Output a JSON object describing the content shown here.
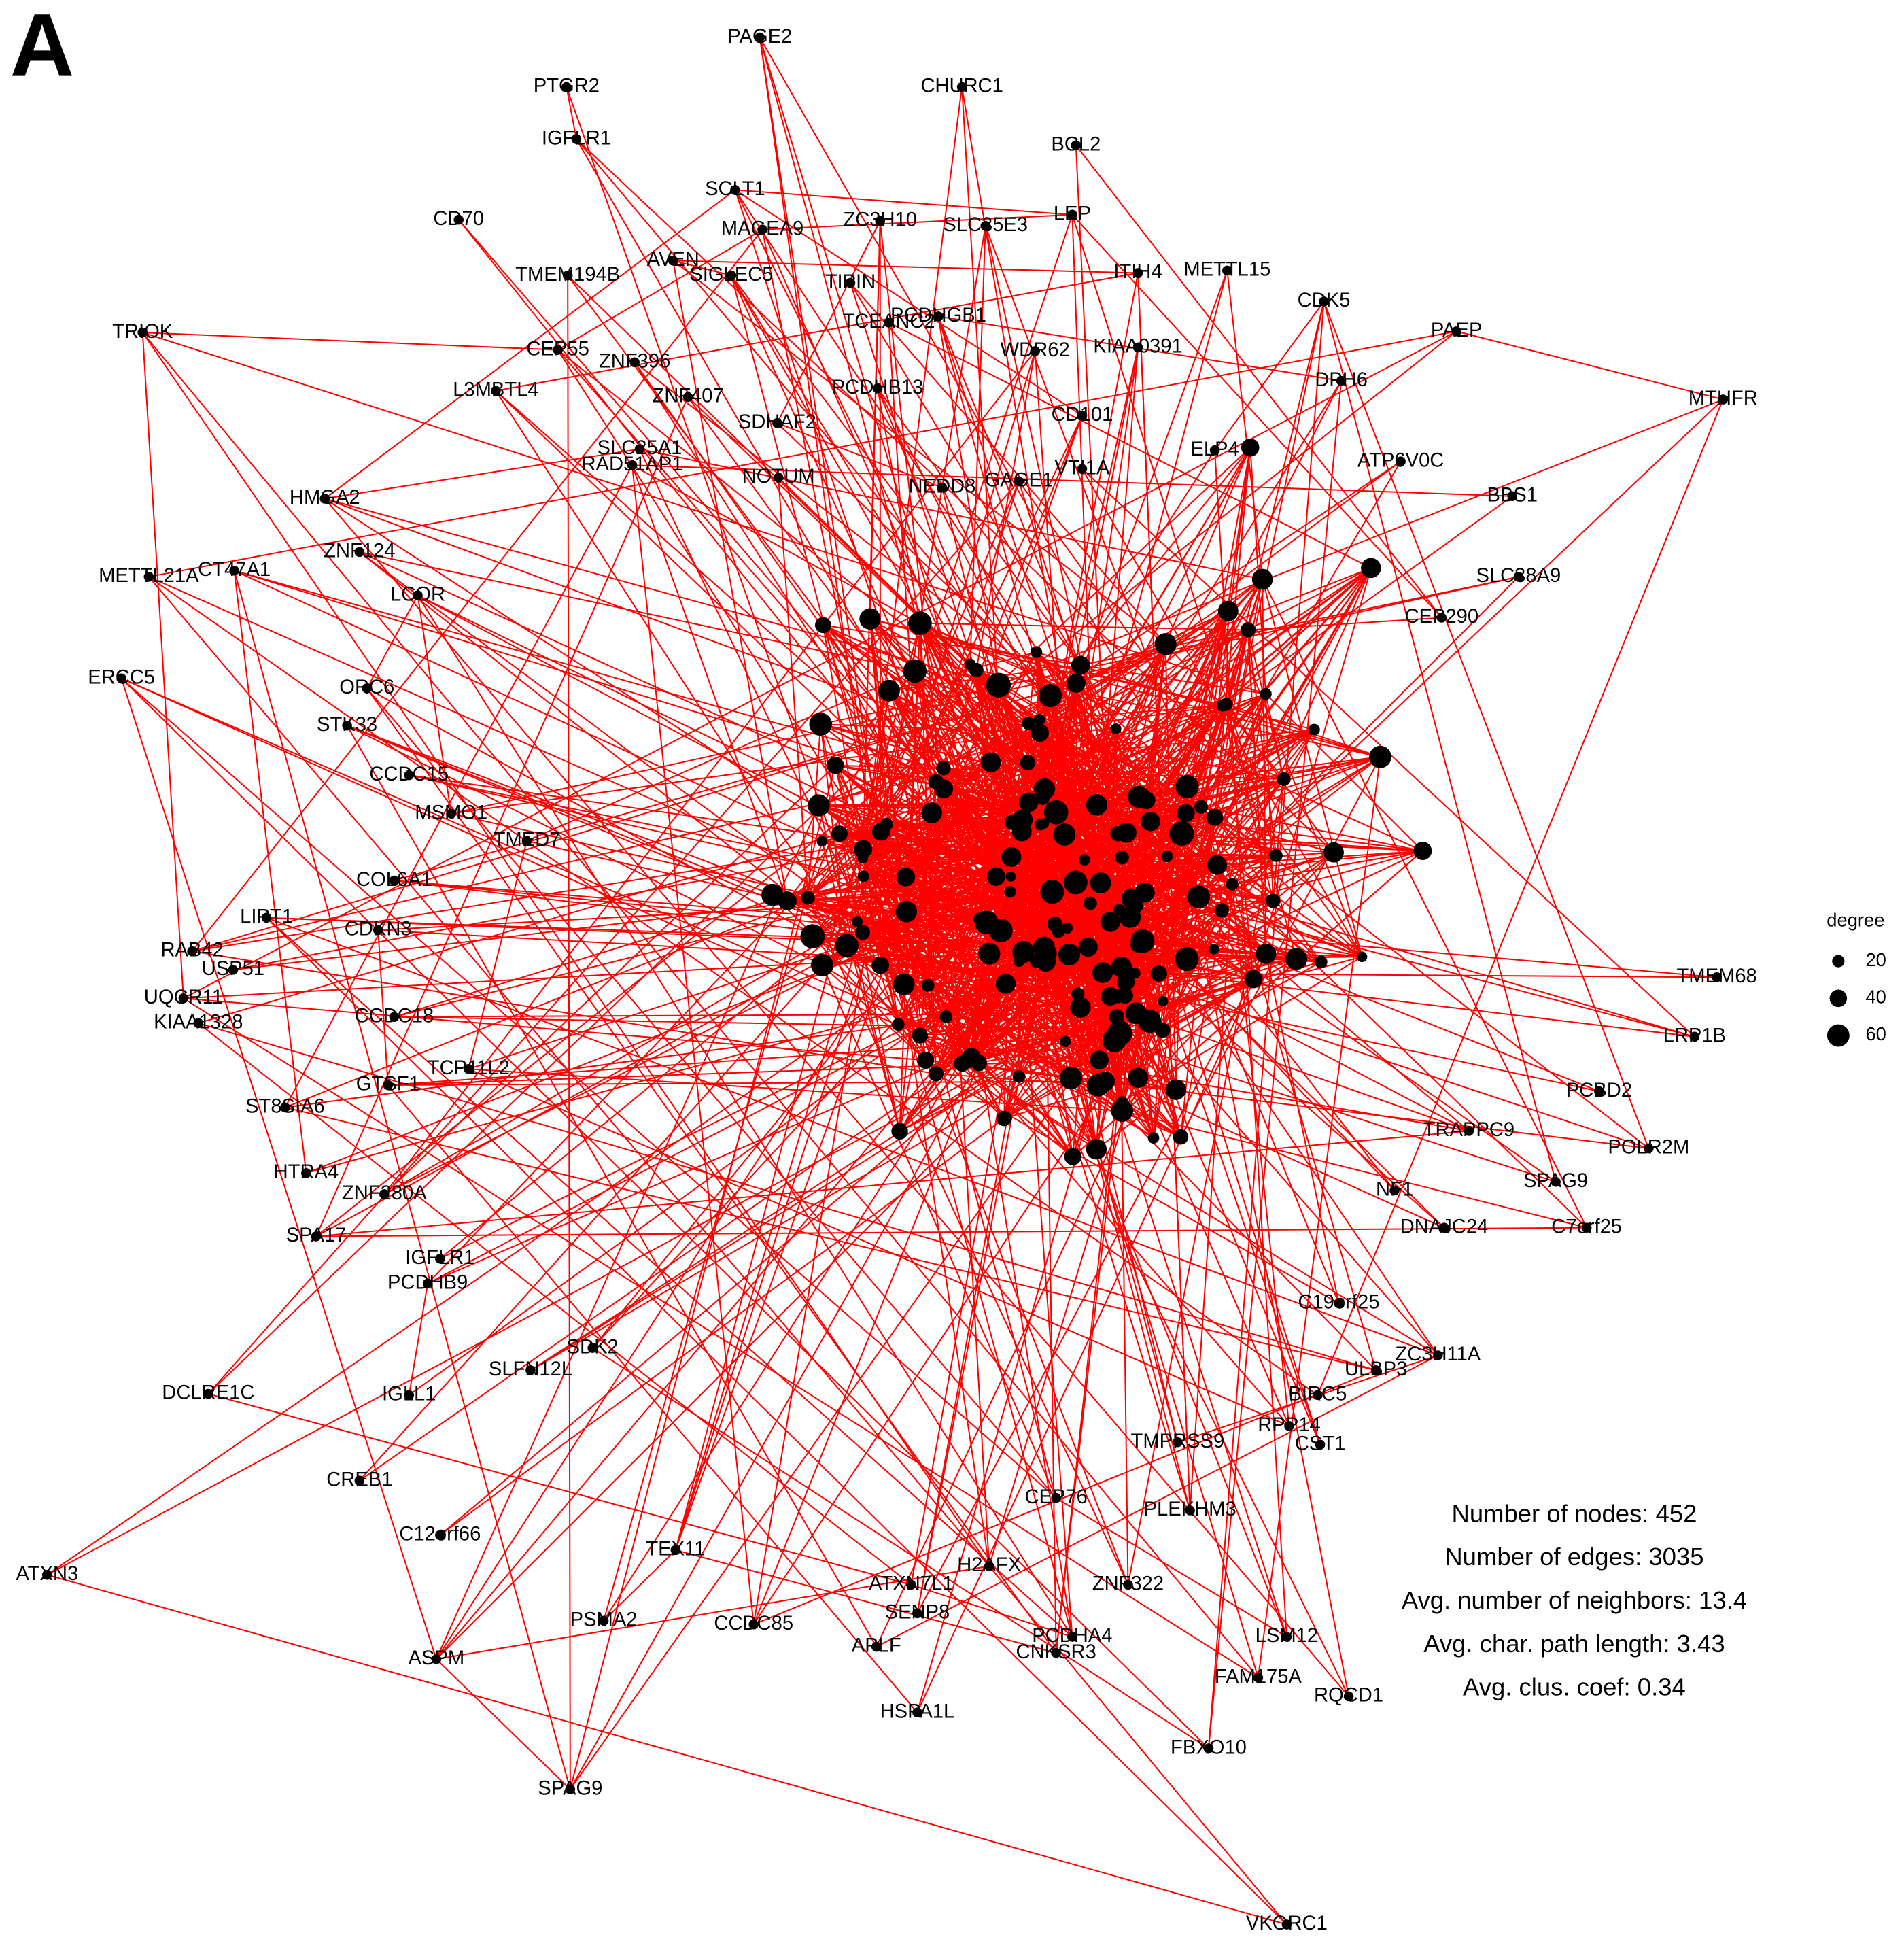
{
  "panel": "A",
  "nodes": [
    "PAGE2",
    "PTGR2",
    "CHURC1",
    "IGFLR1",
    "BCL2",
    "SCLT1",
    "CD70",
    "ZC3H10",
    "SLC35E3",
    "LEP",
    "MAGEA9",
    "AVEN",
    "SIGLEC5",
    "TMEM194B",
    "TIPIN",
    "ITIH4",
    "METTL15",
    "CDK5",
    "TRIOK",
    "PAEP",
    "PCDHGB1",
    "TCEANC2",
    "CEP55",
    "ZNF396",
    "WDR62",
    "KIAA0391",
    "L3MBTL4",
    "ZNF407",
    "PCDHB13",
    "DPH6",
    "MTHFR",
    "SDHAF2",
    "CD101",
    "SLC25A1",
    "RAD51AP1",
    "NOTUM",
    "NEDD8",
    "GAGE1",
    "VTI1A",
    "ELP4",
    "ATP6V0C",
    "HMGA2",
    "BBS1",
    "ZNF124",
    "METTL21A",
    "CT47A1",
    "LCOR",
    "SLC38A9",
    "CEP290",
    "ERCC5",
    "ORC6",
    "STK33",
    "CCDC15",
    "MSMO1",
    "TMED7",
    "LIPT1",
    "COL6A1",
    "CDKN3",
    "RAB42",
    "USP51",
    "UQCR11",
    "TMEM68",
    "LRP1B",
    "KIAA1328",
    "CCDC18",
    "PCBD2",
    "ST8SIA6",
    "GTSF1",
    "TCP11L2",
    "POLR2M",
    "TRAPPC9",
    "HTRA4",
    "SPAG9",
    "NF1",
    "C7orf25",
    "ZNF280A",
    "DNAJC24",
    "SPA17",
    "IGFLR1",
    "PCDHB9",
    "C19orf25",
    "ZC3H11A",
    "ULBP3",
    "SDK2",
    "SLFN12L",
    "DCLRE1C",
    "IGLL1",
    "BIRC5",
    "RPP14",
    "CST1",
    "CREB1",
    "TMPRSS9",
    "CEP76",
    "C12orf66",
    "PLEKHM3",
    "ATXN3",
    "TEX11",
    "ZNF322",
    "ATXN7L1",
    "H2AFX",
    "SENP8",
    "PSMA2",
    "CCDC85",
    "LSM12",
    "ASPM",
    "APLF",
    "PCDHA4",
    "CNKSR3",
    "FAM175A",
    "RQCD1",
    "HSPA1L",
    "FBXO10",
    "SPAG9",
    "VKORC1"
  ],
  "legend": {
    "title": "degree",
    "sizes": [
      20,
      40,
      60
    ]
  },
  "stats": [
    "Number of nodes: 452",
    "Number of edges: 3035",
    "Avg. number of neighbors: 13.4",
    "Avg. char. path length: 3.43",
    "Avg. clus. coef: 0.34"
  ]
}
